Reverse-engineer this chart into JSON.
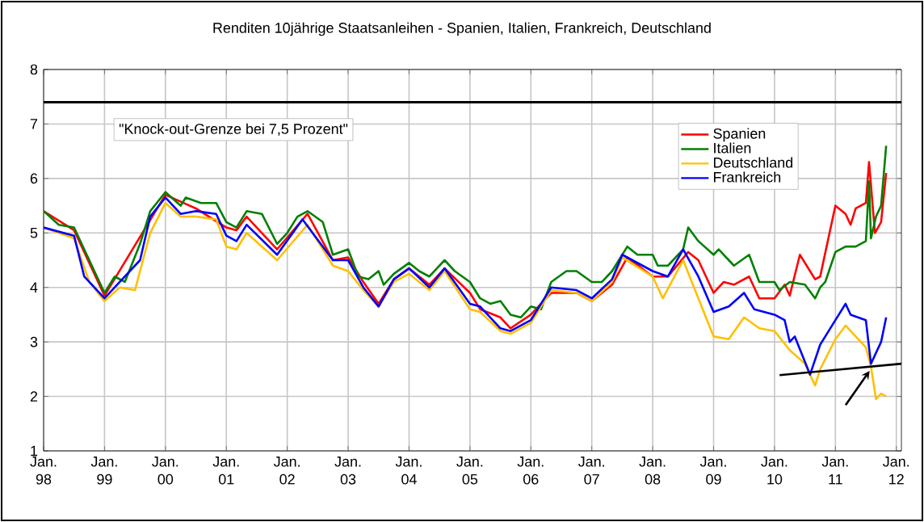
{
  "chart_data": {
    "type": "line",
    "title": "Renditen 10jährige Staatsanleihen - Spanien, Italien, Frankreich, Deutschland",
    "xlim": [
      "1998-01",
      "2012-02"
    ],
    "ylim": [
      1,
      8
    ],
    "xticks": [
      {
        "value": "1998-01",
        "label": "Jan. 98"
      },
      {
        "value": "1999-01",
        "label": "Jan. 99"
      },
      {
        "value": "2000-01",
        "label": "Jan. 00"
      },
      {
        "value": "2001-01",
        "label": "Jan. 01"
      },
      {
        "value": "2002-01",
        "label": "Jan. 02"
      },
      {
        "value": "2003-01",
        "label": "Jan. 03"
      },
      {
        "value": "2004-01",
        "label": "Jan. 04"
      },
      {
        "value": "2005-01",
        "label": "Jan. 05"
      },
      {
        "value": "2006-01",
        "label": "Jan. 06"
      },
      {
        "value": "2007-01",
        "label": "Jan. 07"
      },
      {
        "value": "2008-01",
        "label": "Jan. 08"
      },
      {
        "value": "2009-01",
        "label": "Jan. 09"
      },
      {
        "value": "2010-01",
        "label": "Jan. 10"
      },
      {
        "value": "2011-01",
        "label": "Jan. 11"
      },
      {
        "value": "2012-01",
        "label": "Jan. 12"
      }
    ],
    "yticks": [
      1,
      2,
      3,
      4,
      5,
      6,
      7,
      8
    ],
    "grid": true,
    "legend": "top right",
    "marker": "none",
    "line_style": "solid",
    "ref_lines": [
      {
        "axis": "y",
        "value": 7.4,
        "label": "\"Knock-out-Grenze bei 7,5 Prozent\"",
        "color": "#000000"
      }
    ],
    "series": [
      {
        "name": "Spanien",
        "color": "#ff0000",
        "x": [
          "1998-01",
          "1998-07",
          "1999-01",
          "2000-01",
          "2000-07",
          "2001-01",
          "2001-03",
          "2001-05",
          "2001-11",
          "2002-05",
          "2002-10",
          "2003-01",
          "2003-04",
          "2003-07",
          "2003-10",
          "2004-01",
          "2004-05",
          "2004-08",
          "2005-01",
          "2005-03",
          "2005-07",
          "2005-09",
          "2006-01",
          "2006-05",
          "2006-10",
          "2007-01",
          "2007-05",
          "2007-08",
          "2008-01",
          "2008-04",
          "2008-08",
          "2008-10",
          "2009-01",
          "2009-03",
          "2009-05",
          "2009-08",
          "2009-10",
          "2010-01",
          "2010-03",
          "2010-04",
          "2010-06",
          "2010-09",
          "2010-10",
          "2011-01",
          "2011-03",
          "2011-04",
          "2011-05",
          "2011-07",
          "2011-07-20",
          "2011-08-25",
          "2011-10",
          "2011-11"
        ],
        "values": [
          5.4,
          5.05,
          3.85,
          5.7,
          5.45,
          5.1,
          5.05,
          5.3,
          4.7,
          5.35,
          4.5,
          4.55,
          4.1,
          3.7,
          4.15,
          4.35,
          4.05,
          4.35,
          3.9,
          3.6,
          3.45,
          3.25,
          3.5,
          3.9,
          3.9,
          3.75,
          4.05,
          4.55,
          4.2,
          4.2,
          4.65,
          4.5,
          3.9,
          4.1,
          4.05,
          4.2,
          3.8,
          3.8,
          4.05,
          3.85,
          4.6,
          4.15,
          4.2,
          5.5,
          5.35,
          5.15,
          5.45,
          5.55,
          6.3,
          5.0,
          5.2,
          6.1
        ]
      },
      {
        "name": "Italien",
        "color": "#008000",
        "x": [
          "1998-01",
          "1998-04",
          "1998-07",
          "1998-10",
          "1999-01",
          "1999-03",
          "1999-05",
          "1999-08",
          "1999-10",
          "2000-01",
          "2000-04",
          "2000-05",
          "2000-08",
          "2000-11",
          "2001-01",
          "2001-03",
          "2001-05",
          "2001-08",
          "2001-11",
          "2002-01",
          "2002-03",
          "2002-05",
          "2002-08",
          "2002-10",
          "2003-01",
          "2003-03",
          "2003-05",
          "2003-07",
          "2003-08",
          "2003-10",
          "2004-01",
          "2004-03",
          "2004-05",
          "2004-08",
          "2004-10",
          "2005-01",
          "2005-03",
          "2005-05",
          "2005-07",
          "2005-09",
          "2005-11",
          "2006-01",
          "2006-03",
          "2006-05",
          "2006-08",
          "2006-10",
          "2007-01",
          "2007-03",
          "2007-05",
          "2007-08",
          "2007-10",
          "2008-01",
          "2008-02",
          "2008-04",
          "2008-07",
          "2008-08",
          "2008-10",
          "2009-01",
          "2009-02",
          "2009-04",
          "2009-05",
          "2009-08",
          "2009-10",
          "2010-01",
          "2010-02",
          "2010-04",
          "2010-07",
          "2010-09",
          "2010-10",
          "2010-11",
          "2011-01",
          "2011-03",
          "2011-05",
          "2011-07",
          "2011-07-20",
          "2011-08",
          "2011-09",
          "2011-10",
          "2011-11"
        ],
        "values": [
          5.4,
          5.15,
          5.1,
          4.5,
          3.9,
          4.2,
          4.1,
          4.8,
          5.4,
          5.75,
          5.5,
          5.65,
          5.55,
          5.55,
          5.2,
          5.1,
          5.4,
          5.35,
          4.8,
          5.0,
          5.3,
          5.4,
          5.2,
          4.6,
          4.7,
          4.2,
          4.15,
          4.3,
          4.05,
          4.25,
          4.45,
          4.3,
          4.2,
          4.5,
          4.3,
          4.1,
          3.8,
          3.7,
          3.75,
          3.5,
          3.45,
          3.65,
          3.6,
          4.1,
          4.3,
          4.3,
          4.1,
          4.1,
          4.3,
          4.75,
          4.6,
          4.6,
          4.4,
          4.4,
          4.7,
          5.1,
          4.85,
          4.6,
          4.7,
          4.5,
          4.4,
          4.6,
          4.1,
          4.1,
          3.95,
          4.1,
          4.05,
          3.8,
          4.0,
          4.1,
          4.65,
          4.75,
          4.75,
          4.85,
          5.95,
          4.9,
          5.3,
          5.5,
          6.6
        ]
      },
      {
        "name": "Deutschland",
        "color": "#ffc000",
        "x": [
          "1998-01",
          "1998-07",
          "1998-10",
          "1999-01",
          "1999-04",
          "1999-07",
          "1999-10",
          "2000-01",
          "2000-04",
          "2000-07",
          "2000-11",
          "2001-01",
          "2001-03",
          "2001-05",
          "2001-11",
          "2002-05",
          "2002-10",
          "2003-01",
          "2003-04",
          "2003-07",
          "2003-10",
          "2004-01",
          "2004-05",
          "2004-08",
          "2005-01",
          "2005-03",
          "2005-07",
          "2005-09",
          "2006-01",
          "2006-05",
          "2006-10",
          "2007-01",
          "2007-05",
          "2007-07",
          "2008-01",
          "2008-03",
          "2008-07",
          "2008-10",
          "2009-01",
          "2009-04",
          "2009-07",
          "2009-10",
          "2010-01",
          "2010-04",
          "2010-07",
          "2010-09",
          "2010-10",
          "2011-01",
          "2011-03",
          "2011-07",
          "2011-08",
          "2011-09",
          "2011-10",
          "2011-11"
        ],
        "values": [
          5.1,
          4.9,
          4.1,
          3.75,
          4.0,
          3.95,
          5.0,
          5.55,
          5.3,
          5.3,
          5.25,
          4.75,
          4.7,
          5.0,
          4.5,
          5.15,
          4.4,
          4.3,
          3.95,
          3.65,
          4.1,
          4.25,
          3.95,
          4.3,
          3.6,
          3.55,
          3.2,
          3.15,
          3.35,
          3.95,
          3.9,
          3.75,
          4.1,
          4.55,
          4.2,
          3.8,
          4.5,
          3.8,
          3.1,
          3.05,
          3.45,
          3.25,
          3.2,
          2.85,
          2.6,
          2.2,
          2.5,
          3.05,
          3.3,
          2.9,
          2.55,
          1.95,
          2.05,
          2.0
        ]
      },
      {
        "name": "Frankreich",
        "color": "#0000ff",
        "x": [
          "1998-01",
          "1998-07",
          "1998-09",
          "1999-01",
          "1999-04",
          "1999-08",
          "1999-10",
          "2000-01",
          "2000-04",
          "2000-07",
          "2000-11",
          "2001-01",
          "2001-03",
          "2001-05",
          "2001-11",
          "2002-04",
          "2002-10",
          "2003-01",
          "2003-04",
          "2003-07",
          "2003-10",
          "2004-01",
          "2004-05",
          "2004-08",
          "2005-01",
          "2005-03",
          "2005-07",
          "2005-09",
          "2006-01",
          "2006-05",
          "2006-10",
          "2007-01",
          "2007-05",
          "2007-07",
          "2008-01",
          "2008-04",
          "2008-07",
          "2008-10",
          "2009-01",
          "2009-04",
          "2009-07",
          "2009-09",
          "2010-01",
          "2010-03",
          "2010-04",
          "2010-05",
          "2010-08",
          "2010-10",
          "2011-01",
          "2011-03",
          "2011-04",
          "2011-07",
          "2011-08",
          "2011-10",
          "2011-11"
        ],
        "values": [
          5.1,
          4.95,
          4.2,
          3.8,
          4.1,
          4.5,
          5.3,
          5.65,
          5.35,
          5.4,
          5.35,
          4.95,
          4.85,
          5.15,
          4.6,
          5.25,
          4.5,
          4.5,
          4.0,
          3.65,
          4.15,
          4.35,
          4.0,
          4.35,
          3.7,
          3.65,
          3.25,
          3.2,
          3.4,
          4.0,
          3.95,
          3.8,
          4.15,
          4.6,
          4.3,
          4.2,
          4.7,
          4.2,
          3.55,
          3.65,
          3.9,
          3.6,
          3.5,
          3.4,
          3.0,
          3.1,
          2.4,
          2.95,
          3.4,
          3.7,
          3.5,
          3.4,
          2.6,
          3.0,
          3.45
        ]
      },
      {
        "type": "line",
        "color": "#000000",
        "x": [
          "2010-02",
          "2012-02"
        ],
        "values": [
          2.39,
          2.6
        ]
      }
    ]
  }
}
